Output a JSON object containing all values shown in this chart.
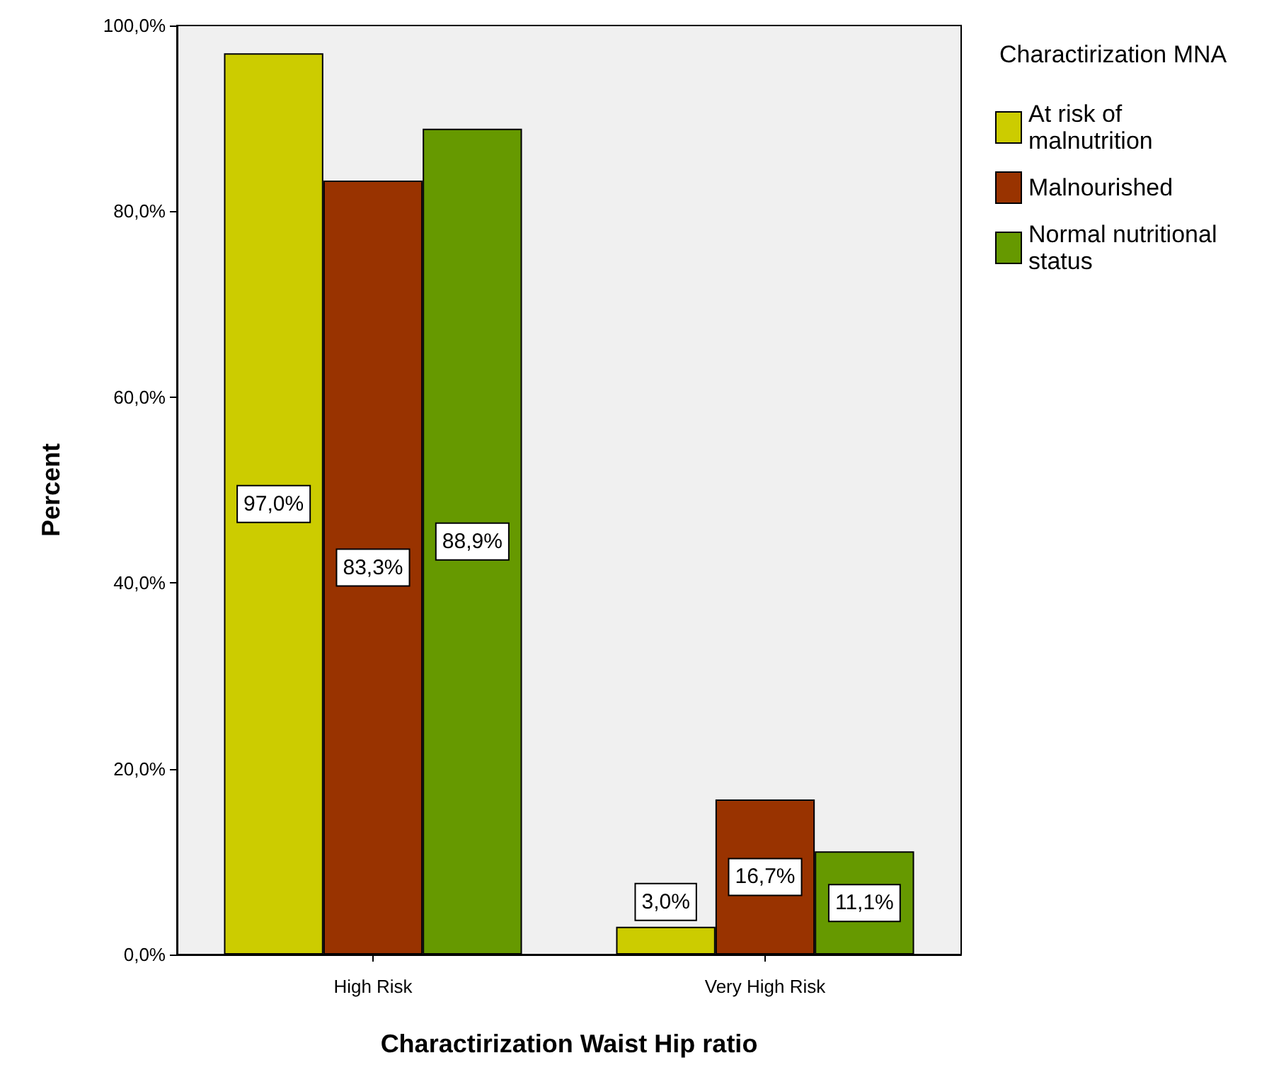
{
  "chart_data": {
    "type": "bar",
    "xlabel": "Charactirization Waist Hip ratio",
    "ylabel": "Percent",
    "legend_title": "Charactirization MNA",
    "legend": "top right",
    "categories": [
      "High Risk",
      "Very High Risk"
    ],
    "series": [
      {
        "name": "At risk of malnutrition",
        "color": "#cccc00",
        "values": [
          97.0,
          3.0
        ],
        "value_labels": [
          "97,0%",
          "3,0%"
        ]
      },
      {
        "name": "Malnourished",
        "color": "#993300",
        "values": [
          83.3,
          16.7
        ],
        "value_labels": [
          "83,3%",
          "16,7%"
        ]
      },
      {
        "name": "Normal nutritional status",
        "color": "#669900",
        "values": [
          88.9,
          11.1
        ],
        "value_labels": [
          "88,9%",
          "11,1%"
        ]
      }
    ],
    "ylim": [
      0,
      100
    ],
    "yticks": [
      {
        "value": 0,
        "label": "0,0%"
      },
      {
        "value": 20,
        "label": "20,0%"
      },
      {
        "value": 40,
        "label": "40,0%"
      },
      {
        "value": 60,
        "label": "60,0%"
      },
      {
        "value": 80,
        "label": "80,0%"
      },
      {
        "value": 100,
        "label": "100,0%"
      }
    ],
    "grid": false
  }
}
